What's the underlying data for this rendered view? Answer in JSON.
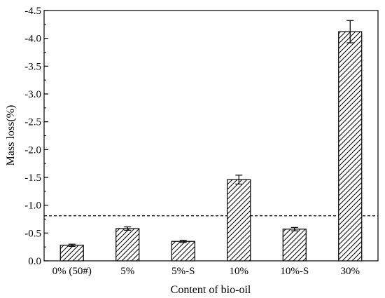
{
  "chart_data": {
    "type": "bar",
    "categories": [
      "0% (50#)",
      "5%",
      "5%-S",
      "10%",
      "10%-S",
      "30%"
    ],
    "values": [
      -0.28,
      -0.58,
      -0.35,
      -1.46,
      -0.57,
      -4.12
    ],
    "errors": [
      0.02,
      0.03,
      0.02,
      0.08,
      0.03,
      0.2
    ],
    "xlabel": "Content of bio-oil",
    "ylabel": "Mass loss(%)",
    "ylim": [
      0.0,
      -4.5
    ],
    "yticks": [
      "0.0",
      "-0.5",
      "-1.0",
      "-1.5",
      "-2.0",
      "-2.5",
      "-3.0",
      "-3.5",
      "-4.0",
      "-4.5"
    ],
    "reference_line": -0.81,
    "bar_pattern": "diagonal-hatch",
    "grid": false,
    "colors": {
      "bar_fill": "#ffffff",
      "hatch": "#000000",
      "axis": "#000000"
    }
  }
}
